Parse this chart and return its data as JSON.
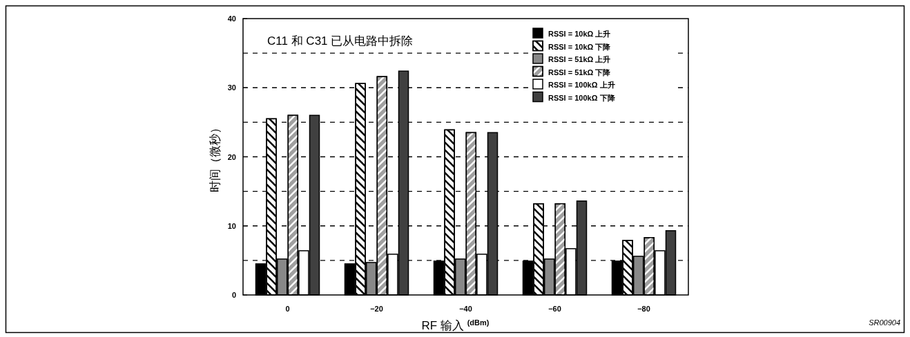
{
  "chart_data": {
    "type": "bar",
    "xlabel": "RF 输入 $^{(dBm)}$",
    "ylabel": "时间（微秒）",
    "categories": [
      "0",
      "−20",
      "−40",
      "−60",
      "−80"
    ],
    "series": [
      {
        "name": "RSSI = 10kΩ 上升",
        "color": "#000000",
        "values": [
          4.5,
          4.5,
          4.9,
          4.9,
          4.9
        ]
      },
      {
        "name": "RSSI = 10kΩ 下降",
        "color": "#ffffff",
        "values": [
          25.5,
          30.6,
          23.9,
          13.2,
          7.9
        ]
      },
      {
        "name": "RSSI = 51kΩ 上升",
        "color": "#888888",
        "values": [
          5.2,
          4.7,
          5.2,
          5.2,
          5.6
        ]
      },
      {
        "name": "RSSI = 51kΩ 下降",
        "color": "#a0a0a0",
        "values": [
          26,
          31.6,
          23.5,
          13.2,
          8.3
        ]
      },
      {
        "name": "RSSI = 100kΩ 上升",
        "color": "#ffffff",
        "values": [
          6.4,
          5.9,
          5.9,
          6.7,
          6.4
        ]
      },
      {
        "name": "RSSI = 100kΩ 下降",
        "color": "#404040",
        "values": [
          26,
          32.4,
          23.5,
          13.6,
          9.3
        ]
      }
    ],
    "ylim": [
      0,
      40
    ],
    "yticks": [
      0,
      {
        "value": 5,
        "label": null
      },
      10,
      {
        "value": 15,
        "label": null
      },
      20,
      {
        "value": 25,
        "label": null
      },
      30,
      {
        "value": 35,
        "label": null
      },
      40
    ],
    "grid": "y",
    "legend": "top right",
    "annotations": [
      "C11 和 C31 已从电路中拆除",
      "SR00904"
    ]
  }
}
